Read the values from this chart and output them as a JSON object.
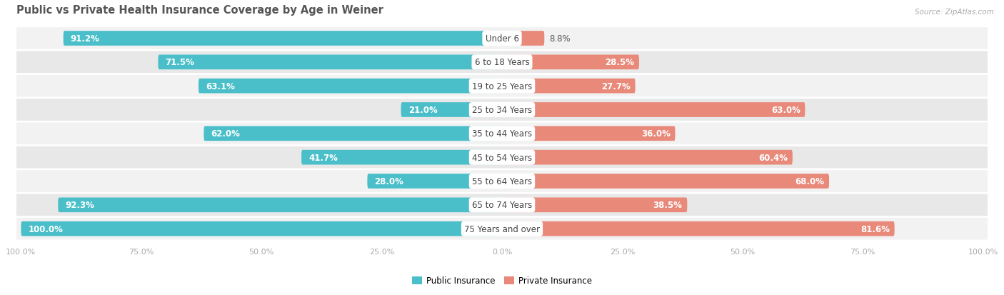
{
  "title": "Public vs Private Health Insurance Coverage by Age in Weiner",
  "source": "Source: ZipAtlas.com",
  "categories": [
    "Under 6",
    "6 to 18 Years",
    "19 to 25 Years",
    "25 to 34 Years",
    "35 to 44 Years",
    "45 to 54 Years",
    "55 to 64 Years",
    "65 to 74 Years",
    "75 Years and over"
  ],
  "public_values": [
    91.2,
    71.5,
    63.1,
    21.0,
    62.0,
    41.7,
    28.0,
    92.3,
    100.0
  ],
  "private_values": [
    8.8,
    28.5,
    27.7,
    63.0,
    36.0,
    60.4,
    68.0,
    38.5,
    81.6
  ],
  "public_color": "#4bbfc9",
  "private_color": "#e8897a",
  "bg_color": "#ffffff",
  "row_bg_even": "#f2f2f2",
  "row_bg_odd": "#e8e8e8",
  "title_color": "#555555",
  "bar_height": 0.62,
  "max_value": 100.0,
  "label_fontsize": 8.5,
  "title_fontsize": 10.5
}
